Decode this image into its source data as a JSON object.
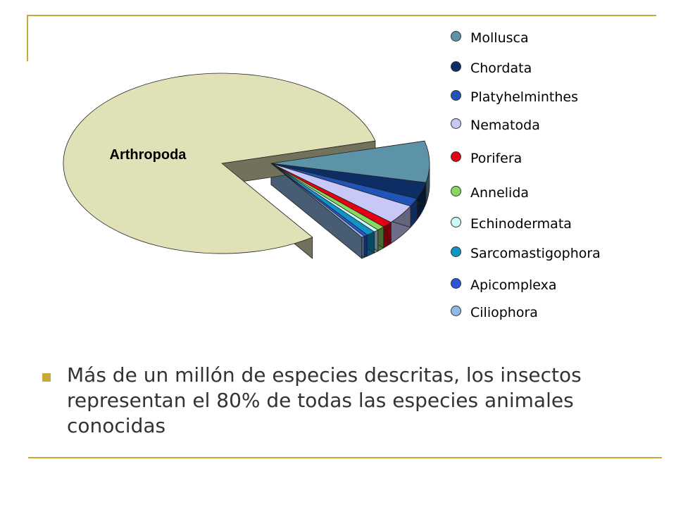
{
  "chart_data": {
    "type": "pie",
    "title": "",
    "categories": [
      "Arthropoda",
      "Mollusca",
      "Chordata",
      "Platyhelminthes",
      "Nematoda",
      "Porifera",
      "Annelida",
      "Echinodermata",
      "Sarcomastigophora",
      "Apicomplexa",
      "Ciliophora"
    ],
    "legend_categories": [
      "Mollusca",
      "Chordata",
      "Platyhelminthes",
      "Nematoda",
      "Porifera",
      "Annelida",
      "Echinodermata",
      "Sarcomastigophora",
      "Apicomplexa",
      "Ciliophora"
    ],
    "values": [
      81.5,
      7.5,
      3.0,
      1.5,
      3.5,
      1.1,
      0.8,
      0.5,
      0.9,
      0.4,
      0.3
    ],
    "colors": [
      "#e1e1b8",
      "#5c93a8",
      "#0d2e64",
      "#1f55b8",
      "#c8c8f8",
      "#e60014",
      "#88d860",
      "#ccf8f8",
      "#1094c8",
      "#2a56d8",
      "#90b8e8"
    ],
    "slice_label": "Arthropoda",
    "legend_placement": "right",
    "exploded_slice": "Arthropoda"
  },
  "bullet": {
    "text": "Más de un millón de especies descritas, los insectos representan el 80% de todas las especies animales conocidas"
  }
}
